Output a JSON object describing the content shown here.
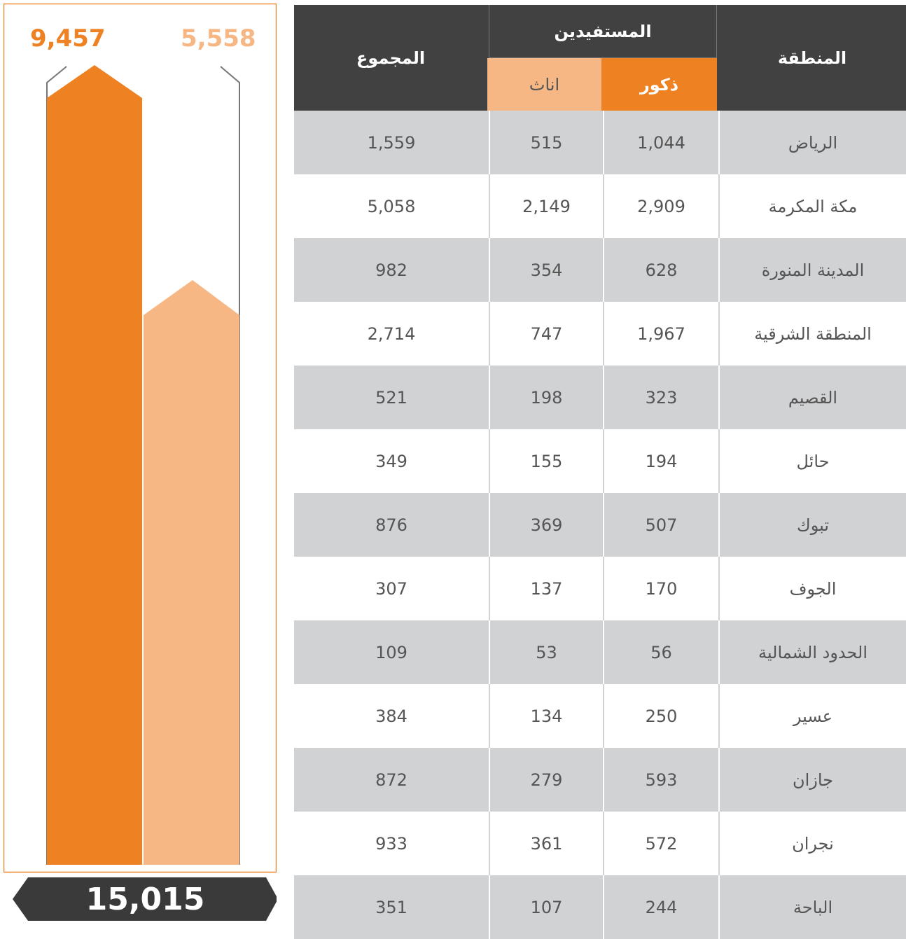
{
  "summary": {
    "male_total": "9,457",
    "female_total": "5,558",
    "total": "15,015"
  },
  "table": {
    "header": {
      "region": "المنطقة",
      "beneficiaries": "المستفيدين",
      "male": "ذكور",
      "female": "اناث",
      "total": "المجموع"
    },
    "rows": [
      [
        "الرياض",
        "1,044",
        "515",
        "1,559"
      ],
      [
        "مكة المكرمة",
        "2,909",
        "2,149",
        "5,058"
      ],
      [
        "المدينة المنورة",
        "628",
        "354",
        "982"
      ],
      [
        "المنطقة الشرقية",
        "1,967",
        "747",
        "2,714"
      ],
      [
        "القصيم",
        "323",
        "198",
        "521"
      ],
      [
        "حائل",
        "194",
        "155",
        "349"
      ],
      [
        "تبوك",
        "507",
        "369",
        "876"
      ],
      [
        "الجوف",
        "170",
        "137",
        "307"
      ],
      [
        "الحدود الشمالية",
        "56",
        "53",
        "109"
      ],
      [
        "عسير",
        "250",
        "134",
        "384"
      ],
      [
        "جازان",
        "593",
        "279",
        "872"
      ],
      [
        "نجران",
        "572",
        "361",
        "933"
      ],
      [
        "الباحة",
        "244",
        "107",
        "351"
      ]
    ]
  }
}
